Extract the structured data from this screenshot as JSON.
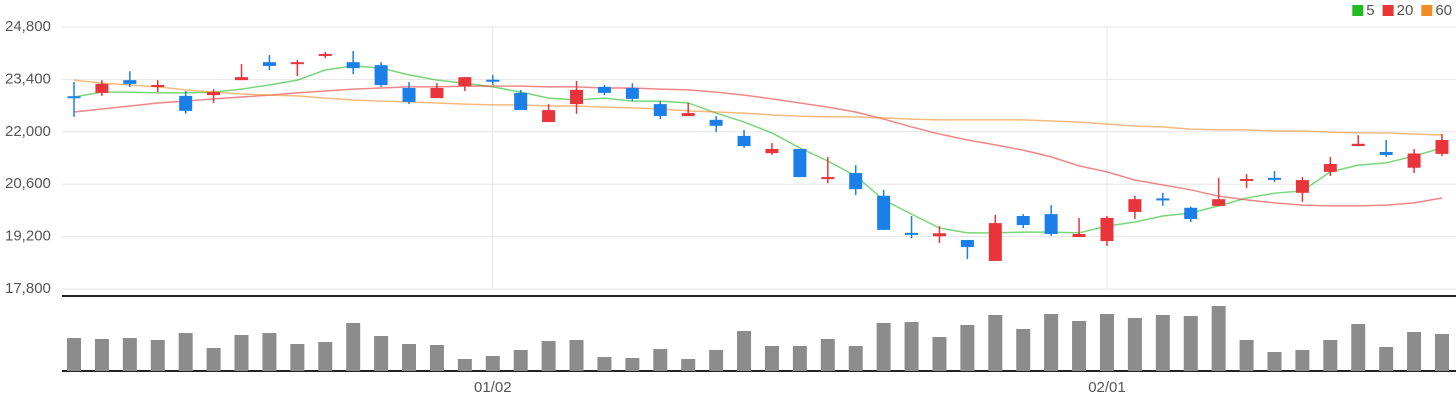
{
  "chart_data": {
    "type": "candlestick",
    "categories": [
      null,
      null,
      null,
      null,
      null,
      null,
      null,
      null,
      null,
      null,
      null,
      null,
      null,
      null,
      null,
      "01/02",
      null,
      null,
      null,
      null,
      null,
      null,
      null,
      null,
      null,
      null,
      null,
      null,
      null,
      null,
      null,
      null,
      null,
      null,
      null,
      null,
      null,
      "02/01",
      null,
      null,
      null,
      null,
      null,
      null,
      null,
      null,
      null,
      null,
      null,
      null
    ],
    "open": [
      22950,
      23040,
      23380,
      23200,
      22960,
      22980,
      23380,
      23860,
      23810,
      24030,
      23860,
      23780,
      23170,
      22900,
      23220,
      23390,
      23040,
      22260,
      22740,
      23200,
      23170,
      22740,
      22420,
      22320,
      21890,
      21430,
      21540,
      20740,
      20900,
      20290,
      19300,
      19210,
      19110,
      18550,
      19750,
      19800,
      19190,
      19080,
      19860,
      20220,
      19970,
      20020,
      20690,
      20770,
      20370,
      20930,
      21620,
      21460,
      21040,
      21410
    ],
    "high": [
      23330,
      23380,
      23620,
      23380,
      23090,
      23140,
      23810,
      24050,
      23920,
      24130,
      24160,
      23860,
      23330,
      23300,
      23460,
      23520,
      23120,
      22740,
      23360,
      23250,
      23300,
      22820,
      22770,
      22420,
      22050,
      21700,
      21540,
      21330,
      21110,
      20450,
      19750,
      19480,
      19110,
      19780,
      19800,
      20040,
      19700,
      19750,
      20290,
      20370,
      20000,
      20770,
      20870,
      20950,
      20790,
      21330,
      21910,
      21780,
      21540,
      21940
    ],
    "low": [
      22400,
      22960,
      23200,
      23060,
      22480,
      22770,
      23380,
      23650,
      23490,
      23970,
      23540,
      23200,
      22740,
      22900,
      23090,
      23250,
      22580,
      22260,
      22480,
      22980,
      22820,
      22340,
      22420,
      21990,
      21570,
      21380,
      20790,
      20630,
      20310,
      19380,
      19160,
      19030,
      18600,
      18550,
      19430,
      19220,
      19190,
      18950,
      19670,
      20020,
      19590,
      20020,
      20500,
      20660,
      20120,
      20820,
      21620,
      21330,
      20900,
      21350
    ],
    "close": [
      22930,
      23280,
      23280,
      23250,
      22560,
      23060,
      23460,
      23760,
      23860,
      24080,
      23700,
      23250,
      22800,
      23170,
      23460,
      23380,
      22580,
      22580,
      23120,
      23040,
      22880,
      22420,
      22500,
      22160,
      21620,
      21540,
      20790,
      20790,
      20470,
      19380,
      19290,
      19290,
      18920,
      19560,
      19510,
      19270,
      19270,
      19700,
      20200,
      20200,
      19670,
      20200,
      20740,
      20750,
      20710,
      21140,
      21680,
      21380,
      21420,
      21780
    ],
    "up_color": "#e8343a",
    "down_color": "#1a7fe8",
    "series": [
      {
        "name": "5",
        "color": "#22bb22",
        "values": [
          22930,
          23060,
          23060,
          23040,
          23040,
          23060,
          23140,
          23250,
          23380,
          23650,
          23760,
          23700,
          23520,
          23380,
          23300,
          23200,
          23060,
          22900,
          22850,
          22900,
          22820,
          22820,
          22770,
          22500,
          22260,
          21970,
          21570,
          21220,
          20820,
          20180,
          19800,
          19430,
          19300,
          19300,
          19320,
          19320,
          19300,
          19480,
          19590,
          19750,
          19830,
          20020,
          20230,
          20360,
          20420,
          20930,
          21110,
          21170,
          21350,
          21570
        ]
      },
      {
        "name": "20",
        "color": "#e83535",
        "values": [
          22530,
          22610,
          22690,
          22770,
          22820,
          22880,
          22930,
          22980,
          23040,
          23090,
          23140,
          23170,
          23200,
          23200,
          23220,
          23220,
          23220,
          23200,
          23200,
          23170,
          23170,
          23140,
          23120,
          23060,
          22980,
          22880,
          22770,
          22660,
          22530,
          22340,
          22130,
          21940,
          21780,
          21650,
          21510,
          21330,
          21090,
          20930,
          20710,
          20580,
          20450,
          20280,
          20180,
          20100,
          20040,
          20020,
          20020,
          20040,
          20100,
          20230
        ]
      },
      {
        "name": "60",
        "color": "#f08c28",
        "values": [
          23380,
          23300,
          23250,
          23200,
          23120,
          23060,
          23010,
          22980,
          22960,
          22900,
          22850,
          22820,
          22800,
          22770,
          22740,
          22720,
          22720,
          22690,
          22690,
          22660,
          22640,
          22610,
          22560,
          22530,
          22500,
          22450,
          22420,
          22400,
          22400,
          22370,
          22340,
          22320,
          22320,
          22320,
          22320,
          22290,
          22260,
          22210,
          22150,
          22130,
          22070,
          22050,
          22050,
          22020,
          22020,
          21990,
          21970,
          21970,
          21940,
          21910
        ]
      }
    ],
    "ylim": [
      17800,
      24800
    ],
    "yticks": [
      {
        "value": 17800,
        "label": "17,800"
      },
      {
        "value": 19200,
        "label": "19,200"
      },
      {
        "value": 20600,
        "label": "20,600"
      },
      {
        "value": 22000,
        "label": "22,000"
      },
      {
        "value": 23400,
        "label": "23,400"
      },
      {
        "value": 24800,
        "label": "24,800"
      }
    ],
    "grid": true,
    "legend": "top-right",
    "volume": [
      33,
      32,
      33,
      31,
      38,
      23,
      36,
      38,
      27,
      29,
      48,
      35,
      27,
      26,
      12,
      15,
      21,
      30,
      31,
      14,
      13,
      22,
      12,
      21,
      40,
      25,
      25,
      32,
      25,
      48,
      49,
      34,
      46,
      56,
      42,
      57,
      50,
      57,
      53,
      56,
      55,
      65,
      31,
      19,
      21,
      31,
      47,
      24,
      39,
      37
    ],
    "volume_color": "#8c8c8c",
    "volume_ylim": [
      0,
      70
    ]
  }
}
